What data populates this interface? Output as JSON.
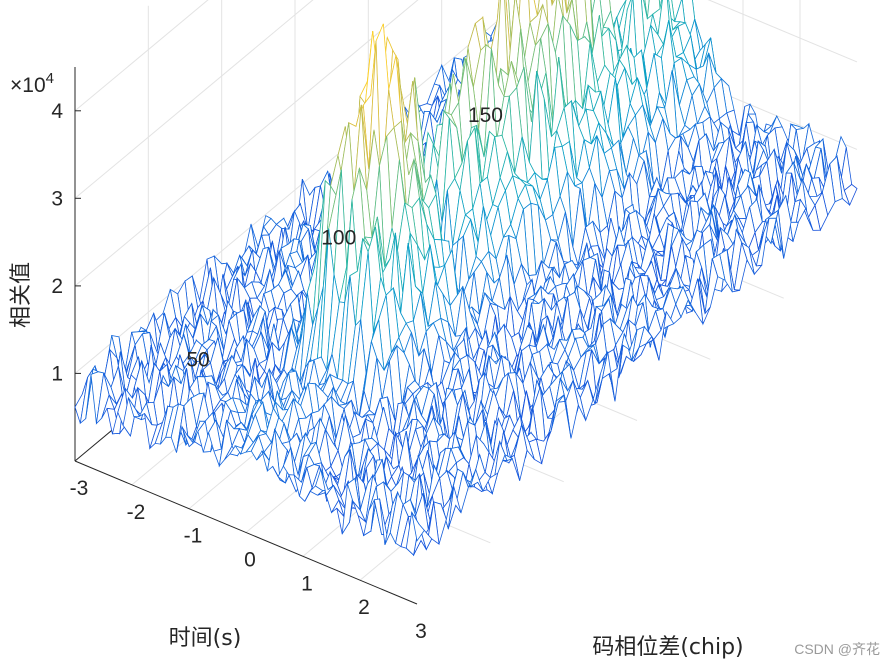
{
  "chart_data": {
    "type": "surface-mesh",
    "xlabel": "码相位差(chip)",
    "ylabel": "时间(s)",
    "zlabel": "相关值",
    "exponent_label": "×10",
    "exponent_power": "4",
    "xlim": [
      -3,
      3
    ],
    "ylim": [
      0,
      150
    ],
    "zlim": [
      0,
      45000
    ],
    "x_ticks": [
      -3,
      -2,
      -1,
      0,
      1,
      2,
      3
    ],
    "y_ticks": [
      50,
      100,
      150
    ],
    "z_ticks": [
      1,
      2,
      3,
      4
    ],
    "grid": true,
    "colormap": "parula",
    "peak_center_x": 0,
    "features": [
      {
        "y_start": 0,
        "y_end": 150,
        "peak_value": 8000
      },
      {
        "y_start": 30,
        "y_end": 60,
        "peak_value": 41000
      },
      {
        "y_start": 65,
        "y_end": 125,
        "peak_value": 37000
      },
      {
        "y_start": 125,
        "y_end": 150,
        "peak_value": 26000
      }
    ],
    "noise_floor": 7500
  },
  "watermark": "CSDN @齐花"
}
